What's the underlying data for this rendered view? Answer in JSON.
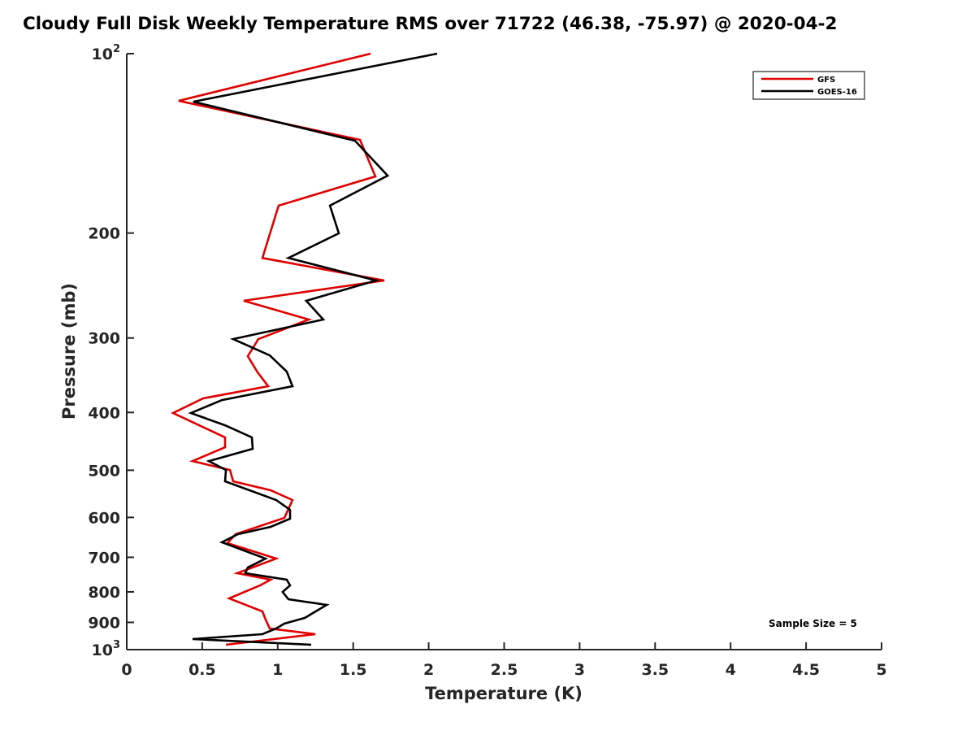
{
  "chart_data": {
    "type": "line",
    "title": "Cloudy Full Disk Weekly Temperature RMS over 71722 (46.38, -75.97) @ 2020-04-2",
    "xlabel": "Temperature (K)",
    "ylabel": "Pressure (mb)",
    "xlim": [
      0,
      5
    ],
    "ylim": [
      100,
      1000
    ],
    "yscale": "log",
    "yaxis_reversed": true,
    "grid": false,
    "legend_position": "top-right",
    "xticks": [
      "0",
      "0.5",
      "1",
      "1.5",
      "2",
      "2.5",
      "3",
      "3.5",
      "4",
      "4.5",
      "5"
    ],
    "xtick_values": [
      0,
      0.5,
      1,
      1.5,
      2,
      2.5,
      3,
      3.5,
      4,
      4.5,
      5
    ],
    "yticks": [
      {
        "value": 100,
        "base": "10",
        "exp": "2"
      },
      {
        "value": 200,
        "label": "200"
      },
      {
        "value": 300,
        "label": "300"
      },
      {
        "value": 400,
        "label": "400"
      },
      {
        "value": 500,
        "label": "500"
      },
      {
        "value": 600,
        "label": "600"
      },
      {
        "value": 700,
        "label": "700"
      },
      {
        "value": 800,
        "label": "800"
      },
      {
        "value": 900,
        "label": "900"
      },
      {
        "value": 1000,
        "base": "10",
        "exp": "3"
      }
    ],
    "annotation": "Sample Size = 5",
    "series": [
      {
        "name": "GFS",
        "color": "#e00000",
        "points": [
          [
            1.615,
            100
          ],
          [
            0.344,
            120.0
          ],
          [
            1.545,
            139.5
          ],
          [
            1.647,
            160.7
          ],
          [
            1.006,
            179.9
          ],
          [
            0.899,
            220.2
          ],
          [
            1.706,
            240.2
          ],
          [
            0.775,
            259.8
          ],
          [
            1.206,
            279.3
          ],
          [
            0.872,
            301.2
          ],
          [
            0.802,
            321.8
          ],
          [
            0.867,
            342.6
          ],
          [
            0.937,
            361.4
          ],
          [
            0.506,
            378.8
          ],
          [
            0.307,
            400.9
          ],
          [
            0.651,
            440.5
          ],
          [
            0.651,
            457.5
          ],
          [
            0.436,
            482.6
          ],
          [
            0.684,
            499.6
          ],
          [
            0.705,
            521.9
          ],
          [
            0.953,
            540.3
          ],
          [
            1.098,
            561.1
          ],
          [
            1.044,
            601.2
          ],
          [
            0.721,
            640.2
          ],
          [
            0.667,
            662.7
          ],
          [
            0.99,
            703.5
          ],
          [
            0.732,
            744.4
          ],
          [
            0.953,
            763.3
          ],
          [
            0.883,
            780.2
          ],
          [
            0.678,
            820.4
          ],
          [
            0.899,
            862.8
          ],
          [
            0.92,
            890.3
          ],
          [
            0.947,
            921.6
          ],
          [
            1.249,
            942.0
          ],
          [
            0.657,
            981.3
          ]
        ]
      },
      {
        "name": "GOES-16",
        "color": "#000000",
        "points": [
          [
            2.056,
            100
          ],
          [
            0.441,
            120.4
          ],
          [
            1.512,
            140.0
          ],
          [
            1.728,
            160.2
          ],
          [
            1.346,
            179.9
          ],
          [
            1.405,
            200.2
          ],
          [
            1.071,
            220.2
          ],
          [
            1.652,
            240.2
          ],
          [
            1.189,
            259.8
          ],
          [
            1.302,
            279.3
          ],
          [
            0.705,
            301.2
          ],
          [
            0.947,
            320.8
          ],
          [
            1.06,
            341.5
          ],
          [
            1.098,
            361.4
          ],
          [
            0.63,
            381.3
          ],
          [
            0.425,
            400.9
          ],
          [
            0.651,
            420.3
          ],
          [
            0.829,
            440.5
          ],
          [
            0.834,
            460.3
          ],
          [
            0.544,
            482.6
          ],
          [
            0.657,
            499.6
          ],
          [
            0.651,
            521.9
          ],
          [
            0.99,
            561.1
          ],
          [
            1.082,
            582.7
          ],
          [
            1.082,
            603.1
          ],
          [
            0.953,
            622.3
          ],
          [
            0.737,
            640.2
          ],
          [
            0.63,
            660.6
          ],
          [
            0.92,
            703.5
          ],
          [
            0.802,
            728.2
          ],
          [
            0.786,
            744.4
          ],
          [
            1.06,
            763.3
          ],
          [
            1.082,
            780.2
          ],
          [
            1.033,
            800.1
          ],
          [
            1.071,
            823.1
          ],
          [
            1.324,
            841.4
          ],
          [
            1.179,
            884.8
          ],
          [
            1.044,
            904.4
          ],
          [
            0.99,
            921.6
          ],
          [
            0.899,
            942.0
          ],
          [
            0.436,
            959.9
          ],
          [
            1.222,
            981.3
          ]
        ]
      }
    ]
  }
}
